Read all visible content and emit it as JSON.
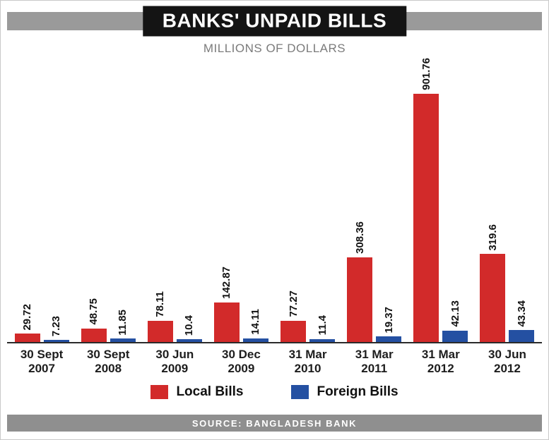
{
  "header": {
    "title": "BANKS' UNPAID BILLS",
    "subtitle": "MILLIONS OF DOLLARS"
  },
  "legend": {
    "items": [
      {
        "label": "Local Bills",
        "color": "#d22a2a"
      },
      {
        "label": "Foreign Bills",
        "color": "#2450a2"
      }
    ]
  },
  "footer": {
    "source": "SOURCE: BANGLADESH BANK"
  },
  "chart_data": {
    "type": "bar",
    "title": "BANKS' UNPAID BILLS",
    "subtitle": "MILLIONS OF DOLLARS",
    "categories": [
      [
        "30 Sept",
        "2007"
      ],
      [
        "30 Sept",
        "2008"
      ],
      [
        "30 Jun",
        "2009"
      ],
      [
        "30 Dec",
        "2009"
      ],
      [
        "31 Mar",
        "2010"
      ],
      [
        "31 Mar",
        "2011"
      ],
      [
        "31 Mar",
        "2012"
      ],
      [
        "30 Jun",
        "2012"
      ]
    ],
    "series": [
      {
        "name": "Local Bills",
        "color": "#d22a2a",
        "values": [
          29.72,
          48.75,
          78.11,
          142.87,
          77.27,
          308.36,
          901.76,
          319.6
        ]
      },
      {
        "name": "Foreign Bills",
        "color": "#2450a2",
        "values": [
          7.23,
          11.85,
          10.4,
          14.11,
          11.4,
          19.37,
          42.13,
          43.34
        ]
      }
    ],
    "xlabel": "",
    "ylabel": "Millions of dollars",
    "ylim": [
      0,
      950
    ],
    "grid": false,
    "legend_position": "bottom",
    "value_labels": "rotated-90-above-bars",
    "source": "SOURCE: BANGLADESH BANK"
  }
}
